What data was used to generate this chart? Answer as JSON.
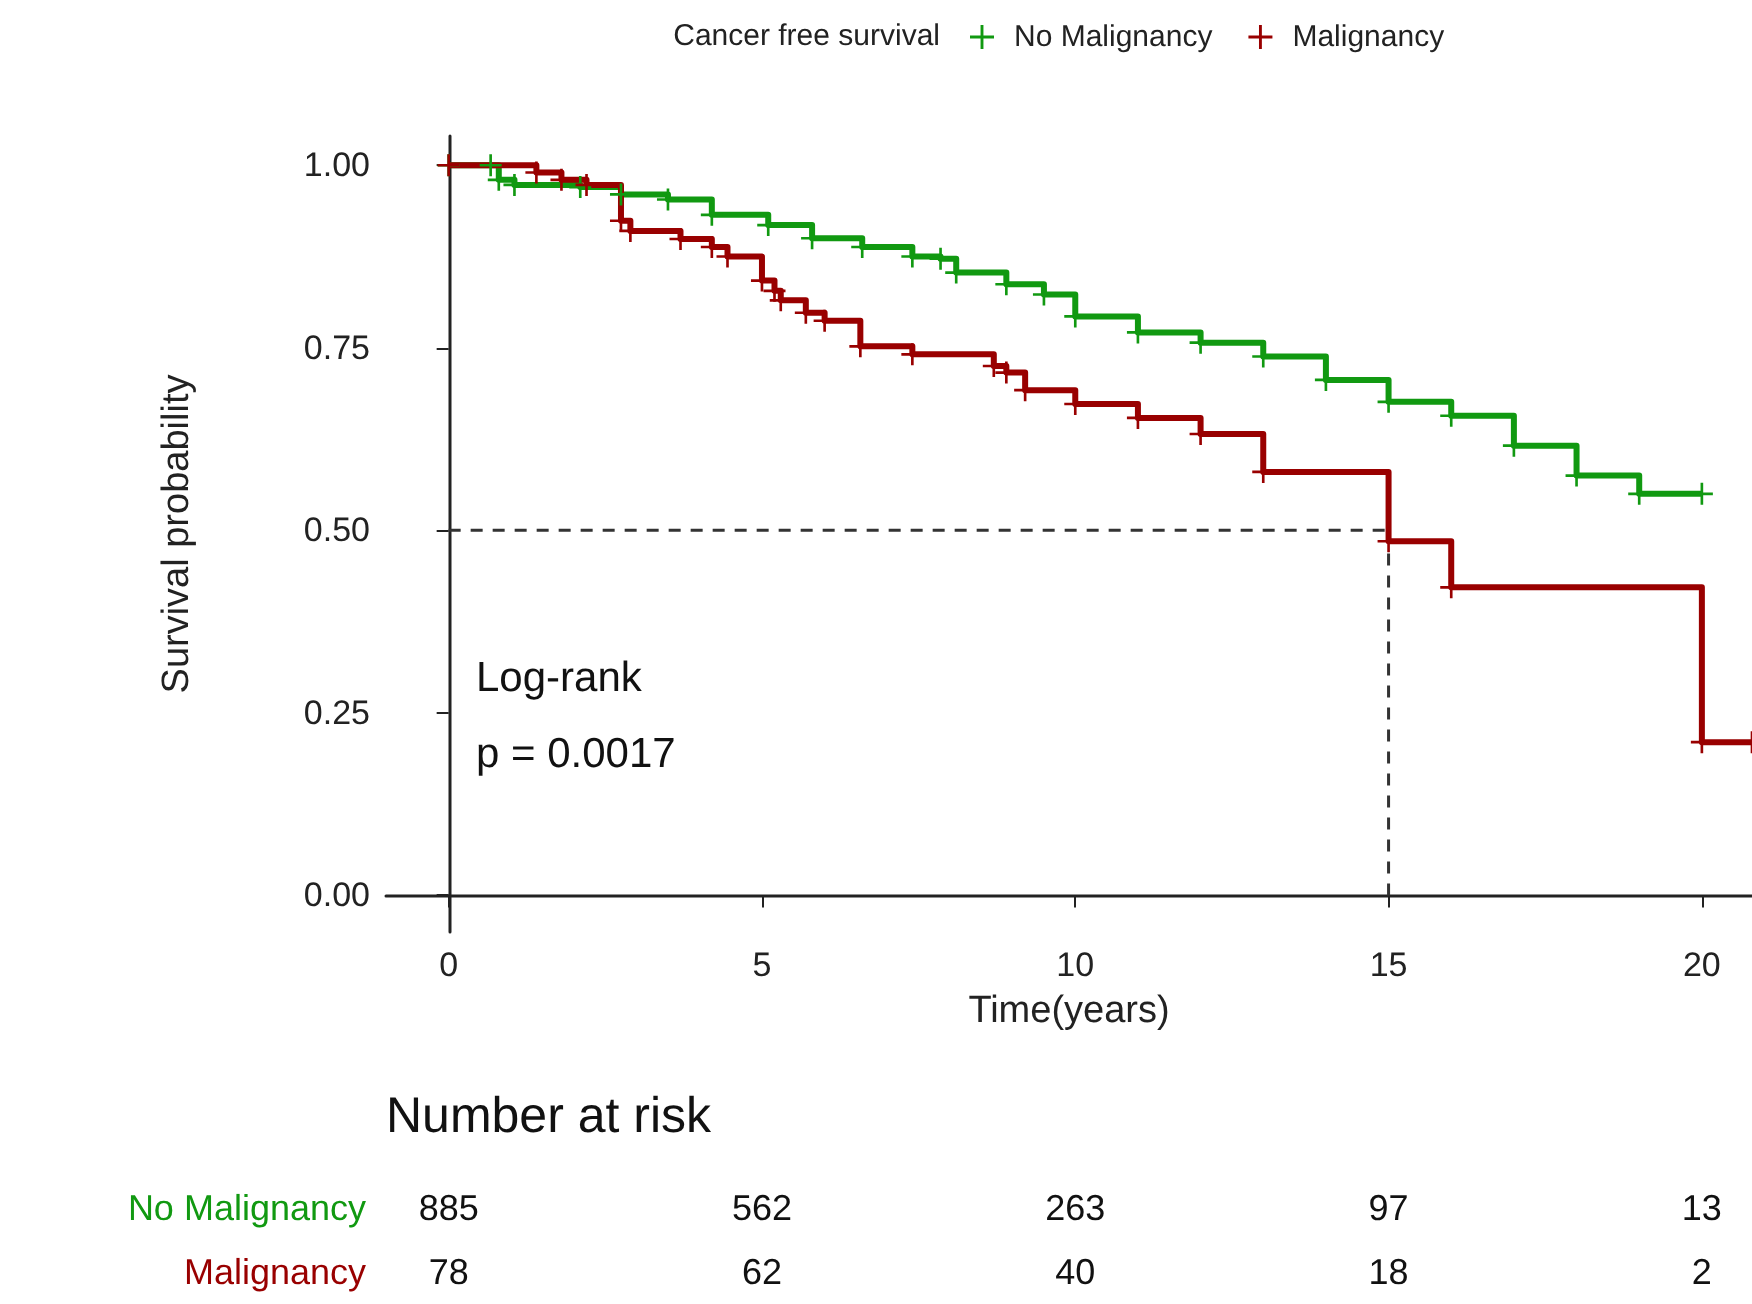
{
  "chart_data": {
    "type": "step",
    "xlabel": "Time(years)",
    "ylabel": "Survival probability",
    "legend_title": "Cancer free survival",
    "legend": "top",
    "marker": "cross",
    "grid": false,
    "xlim": [
      -1,
      20.8
    ],
    "xticks": [
      0,
      5,
      10,
      15,
      20
    ],
    "ylim": [
      -0.05,
      1.04
    ],
    "yticks": [
      {
        "value": 0,
        "label": "0.00"
      },
      {
        "value": 0.25,
        "label": "0.25"
      },
      {
        "value": 0.5,
        "label": "0.50"
      },
      {
        "value": 0.75,
        "label": "0.75"
      },
      {
        "value": 1,
        "label": "1.00"
      }
    ],
    "series": [
      {
        "name": "No Malignancy",
        "color": "#119911",
        "x": [
          0,
          0.67,
          0.8,
          1.05,
          2.1,
          2.75,
          3.5,
          4.2,
          5.1,
          5.8,
          6.6,
          7.4,
          7.85,
          8.1,
          8.9,
          9.5,
          10,
          11,
          12,
          13,
          14,
          15,
          16,
          17,
          18,
          19,
          20
        ],
        "values": [
          1,
          1,
          0.98,
          0.973,
          0.97,
          0.96,
          0.953,
          0.932,
          0.918,
          0.9,
          0.888,
          0.875,
          0.872,
          0.853,
          0.837,
          0.823,
          0.793,
          0.771,
          0.757,
          0.738,
          0.706,
          0.676,
          0.657,
          0.616,
          0.575,
          0.55,
          0.55
        ]
      },
      {
        "name": "Malignancy",
        "color": "#990000",
        "x": [
          0,
          1.4,
          1.8,
          2.2,
          2.75,
          2.9,
          3.7,
          4.2,
          4.45,
          5,
          5.2,
          5.3,
          5.7,
          6,
          6.57,
          7.4,
          8.7,
          8.9,
          9.2,
          10,
          11,
          12,
          13,
          15,
          16,
          20,
          20.8
        ],
        "values": [
          1,
          0.99,
          0.98,
          0.973,
          0.924,
          0.91,
          0.899,
          0.888,
          0.875,
          0.842,
          0.828,
          0.815,
          0.798,
          0.787,
          0.752,
          0.741,
          0.725,
          0.716,
          0.692,
          0.673,
          0.654,
          0.632,
          0.58,
          0.485,
          0.422,
          0.21,
          0.21
        ]
      }
    ],
    "ref_lines": [
      {
        "axis": "y",
        "value": 0.5,
        "color": "#333333",
        "line_style": "dashed"
      },
      {
        "axis": "x",
        "value": 15,
        "color": "#333333",
        "line_style": "dashed"
      }
    ],
    "annotations": [
      "Log-rank",
      "p = 0.0017",
      "Number at risk",
      "885",
      "562",
      "263",
      "97",
      "13",
      "78",
      "62",
      "40",
      "18",
      "2"
    ]
  }
}
